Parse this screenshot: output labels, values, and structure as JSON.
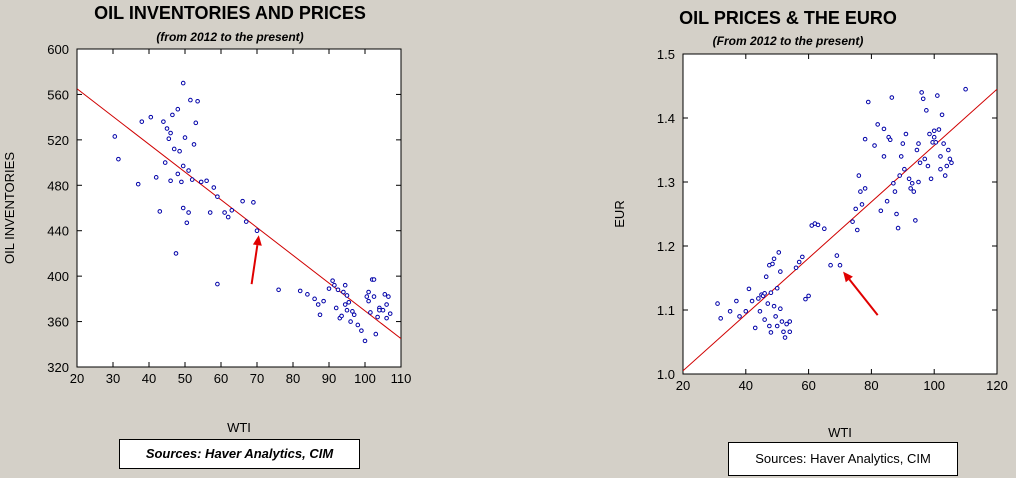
{
  "chart_data": [
    {
      "type": "scatter",
      "title": "OIL INVENTORIES AND PRICES",
      "subtitle": "(from 2012 to the present)",
      "xlabel": "WTI",
      "ylabel": "OIL INVENTORIES",
      "xlim": [
        20,
        110
      ],
      "ylim": [
        320,
        600
      ],
      "xticks": [
        20,
        30,
        40,
        50,
        60,
        70,
        80,
        90,
        100,
        110
      ],
      "yticks": [
        320,
        360,
        400,
        440,
        480,
        520,
        560,
        600
      ],
      "grid": false,
      "marker_color": "#0000a8",
      "fit_line": {
        "color": "#d00000",
        "x": [
          20,
          110
        ],
        "y": [
          565,
          345
        ]
      },
      "annotation_arrow": {
        "color": "#e00000",
        "from": [
          68.5,
          393
        ],
        "to": [
          70.5,
          436
        ]
      },
      "points": [
        [
          30.5,
          523
        ],
        [
          31.5,
          503
        ],
        [
          37,
          481
        ],
        [
          38,
          536
        ],
        [
          40.5,
          540
        ],
        [
          42,
          487
        ],
        [
          43,
          457
        ],
        [
          44,
          536
        ],
        [
          44.5,
          500
        ],
        [
          45,
          530
        ],
        [
          45.5,
          521
        ],
        [
          46,
          526
        ],
        [
          46,
          484
        ],
        [
          46.5,
          542
        ],
        [
          47,
          512
        ],
        [
          47.5,
          420
        ],
        [
          48,
          547
        ],
        [
          48,
          490
        ],
        [
          48.5,
          510
        ],
        [
          49,
          483
        ],
        [
          49.5,
          570
        ],
        [
          49.5,
          497
        ],
        [
          49.5,
          460
        ],
        [
          50,
          522
        ],
        [
          50.5,
          447
        ],
        [
          51,
          493
        ],
        [
          51,
          456
        ],
        [
          51.5,
          555
        ],
        [
          52,
          485
        ],
        [
          52.5,
          516
        ],
        [
          53,
          535
        ],
        [
          53.5,
          554
        ],
        [
          54.5,
          483
        ],
        [
          56,
          484
        ],
        [
          57,
          456
        ],
        [
          58,
          478
        ],
        [
          59,
          393
        ],
        [
          59,
          470
        ],
        [
          61,
          456
        ],
        [
          62,
          452
        ],
        [
          63,
          458
        ],
        [
          66,
          466
        ],
        [
          67,
          448
        ],
        [
          69,
          465
        ],
        [
          70,
          440
        ],
        [
          76,
          388
        ],
        [
          82,
          387
        ],
        [
          84,
          384
        ],
        [
          86,
          380
        ],
        [
          87,
          375
        ],
        [
          87.5,
          366
        ],
        [
          88.5,
          378
        ],
        [
          90,
          389
        ],
        [
          91,
          396
        ],
        [
          91.5,
          392
        ],
        [
          92,
          372
        ],
        [
          92.5,
          388
        ],
        [
          93,
          363
        ],
        [
          93.5,
          365
        ],
        [
          94,
          386
        ],
        [
          94.5,
          392
        ],
        [
          94.5,
          375
        ],
        [
          95,
          383
        ],
        [
          95,
          370
        ],
        [
          95.5,
          377
        ],
        [
          96,
          360
        ],
        [
          96.5,
          369
        ],
        [
          97,
          366
        ],
        [
          98,
          357
        ],
        [
          99,
          352
        ],
        [
          100,
          343
        ],
        [
          100.5,
          382
        ],
        [
          101,
          386
        ],
        [
          101,
          378
        ],
        [
          101.5,
          368
        ],
        [
          102,
          397
        ],
        [
          102.5,
          397
        ],
        [
          102.5,
          382
        ],
        [
          103,
          349
        ],
        [
          103.5,
          364
        ],
        [
          104,
          372
        ],
        [
          104,
          370
        ],
        [
          105,
          370
        ],
        [
          105.5,
          384
        ],
        [
          106,
          375
        ],
        [
          106,
          363
        ],
        [
          106.5,
          382
        ],
        [
          107,
          367
        ]
      ]
    },
    {
      "type": "scatter",
      "title": "OIL PRICES & THE EURO",
      "subtitle": "(From 2012 to the present)",
      "xlabel": "WTI",
      "ylabel": "EUR",
      "xlim": [
        20,
        120
      ],
      "ylim": [
        1.0,
        1.5
      ],
      "xticks": [
        20,
        40,
        60,
        80,
        100,
        120
      ],
      "yticks": [
        1.0,
        1.1,
        1.2,
        1.3,
        1.4,
        1.5
      ],
      "grid": false,
      "marker_color": "#0000a8",
      "fit_line": {
        "color": "#d00000",
        "x": [
          20,
          120
        ],
        "y": [
          1.005,
          1.445
        ]
      },
      "annotation_arrow": {
        "color": "#e00000",
        "from": [
          82,
          1.092
        ],
        "to": [
          71,
          1.16
        ]
      },
      "points": [
        [
          31,
          1.11
        ],
        [
          32,
          1.087
        ],
        [
          35,
          1.098
        ],
        [
          37,
          1.114
        ],
        [
          38,
          1.09
        ],
        [
          40,
          1.098
        ],
        [
          41,
          1.133
        ],
        [
          42,
          1.114
        ],
        [
          43,
          1.072
        ],
        [
          44,
          1.118
        ],
        [
          44.5,
          1.098
        ],
        [
          45,
          1.124
        ],
        [
          45.5,
          1.122
        ],
        [
          46,
          1.126
        ],
        [
          46,
          1.085
        ],
        [
          46.5,
          1.152
        ],
        [
          47,
          1.11
        ],
        [
          47.5,
          1.17
        ],
        [
          47.5,
          1.075
        ],
        [
          48,
          1.127
        ],
        [
          48,
          1.065
        ],
        [
          48.5,
          1.172
        ],
        [
          49,
          1.18
        ],
        [
          49,
          1.106
        ],
        [
          49.5,
          1.09
        ],
        [
          50,
          1.134
        ],
        [
          50,
          1.075
        ],
        [
          50.5,
          1.19
        ],
        [
          51,
          1.16
        ],
        [
          51,
          1.102
        ],
        [
          51.5,
          1.082
        ],
        [
          52,
          1.066
        ],
        [
          52.5,
          1.057
        ],
        [
          53,
          1.078
        ],
        [
          54,
          1.066
        ],
        [
          54,
          1.082
        ],
        [
          56,
          1.166
        ],
        [
          57,
          1.175
        ],
        [
          58,
          1.183
        ],
        [
          59,
          1.117
        ],
        [
          60,
          1.122
        ],
        [
          61,
          1.232
        ],
        [
          62,
          1.235
        ],
        [
          63,
          1.233
        ],
        [
          65,
          1.227
        ],
        [
          67,
          1.17
        ],
        [
          69,
          1.185
        ],
        [
          70,
          1.17
        ],
        [
          74,
          1.238
        ],
        [
          75,
          1.258
        ],
        [
          75.5,
          1.225
        ],
        [
          76,
          1.31
        ],
        [
          76.5,
          1.285
        ],
        [
          77,
          1.265
        ],
        [
          78,
          1.29
        ],
        [
          78,
          1.367
        ],
        [
          79,
          1.425
        ],
        [
          81,
          1.357
        ],
        [
          82,
          1.39
        ],
        [
          83,
          1.255
        ],
        [
          84,
          1.383
        ],
        [
          84,
          1.34
        ],
        [
          85,
          1.27
        ],
        [
          85.5,
          1.37
        ],
        [
          86,
          1.366
        ],
        [
          86.5,
          1.432
        ],
        [
          87,
          1.298
        ],
        [
          87.5,
          1.285
        ],
        [
          88,
          1.25
        ],
        [
          88.5,
          1.228
        ],
        [
          89,
          1.31
        ],
        [
          89.5,
          1.34
        ],
        [
          90,
          1.36
        ],
        [
          90.5,
          1.32
        ],
        [
          91,
          1.375
        ],
        [
          92,
          1.305
        ],
        [
          92.5,
          1.29
        ],
        [
          93,
          1.298
        ],
        [
          93.5,
          1.285
        ],
        [
          94,
          1.24
        ],
        [
          94.5,
          1.35
        ],
        [
          95,
          1.3
        ],
        [
          95,
          1.36
        ],
        [
          95.5,
          1.33
        ],
        [
          96,
          1.44
        ],
        [
          96.5,
          1.43
        ],
        [
          97,
          1.336
        ],
        [
          97.5,
          1.412
        ],
        [
          98,
          1.325
        ],
        [
          98.5,
          1.375
        ],
        [
          99,
          1.305
        ],
        [
          99.5,
          1.362
        ],
        [
          100,
          1.37
        ],
        [
          100,
          1.38
        ],
        [
          100.5,
          1.362
        ],
        [
          101,
          1.435
        ],
        [
          101.5,
          1.382
        ],
        [
          102,
          1.34
        ],
        [
          102,
          1.32
        ],
        [
          102.5,
          1.405
        ],
        [
          103,
          1.36
        ],
        [
          103.5,
          1.31
        ],
        [
          104,
          1.325
        ],
        [
          104.5,
          1.35
        ],
        [
          105,
          1.336
        ],
        [
          105.5,
          1.33
        ],
        [
          110,
          1.445
        ]
      ]
    }
  ],
  "sources": {
    "left": "Sources:  Haver Analytics, CIM",
    "right": "Sources: Haver Analytics, CIM"
  }
}
